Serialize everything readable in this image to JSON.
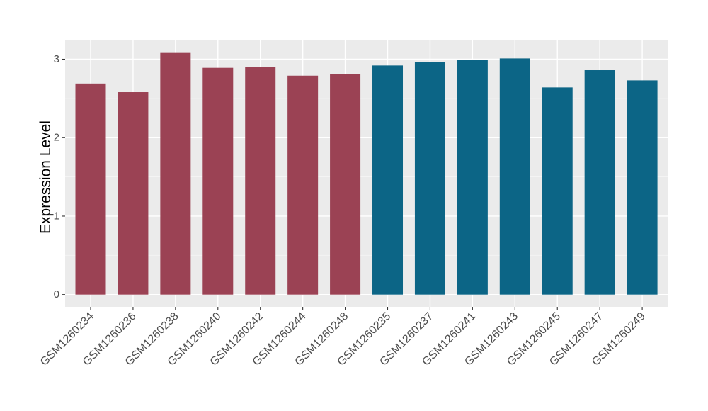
{
  "chart_data": {
    "type": "bar",
    "title": "",
    "xlabel": "",
    "ylabel": "Expression Level",
    "categories": [
      "GSM1260234",
      "GSM1260236",
      "GSM1260238",
      "GSM1260240",
      "GSM1260242",
      "GSM1260244",
      "GSM1260248",
      "GSM1260235",
      "GSM1260237",
      "GSM1260241",
      "GSM1260243",
      "GSM1260245",
      "GSM1260247",
      "GSM1260249"
    ],
    "values": [
      2.69,
      2.58,
      3.08,
      2.89,
      2.9,
      2.79,
      2.81,
      2.92,
      2.96,
      2.99,
      3.01,
      2.64,
      2.86,
      2.73
    ],
    "bar_colors": [
      "#9B4254",
      "#9B4254",
      "#9B4254",
      "#9B4254",
      "#9B4254",
      "#9B4254",
      "#9B4254",
      "#0C6586",
      "#0C6586",
      "#0C6586",
      "#0C6586",
      "#0C6586",
      "#0C6586",
      "#0C6586"
    ],
    "yticks": [
      0,
      1,
      2,
      3
    ],
    "ytick_labels": [
      "0",
      "1",
      "2",
      "3"
    ],
    "yminor": [
      0.5,
      1.5,
      2.5
    ],
    "ylim": [
      0,
      3.25
    ],
    "grid": "on",
    "legend": "none",
    "x_label_angle_deg": 45,
    "colors": {
      "panel_background": "#EBEBEB",
      "major_gridline": "#FFFFFF",
      "minor_gridline": "#F5F5F5",
      "axis_text": "#4D4D4D",
      "tick_mark": "#333333",
      "group_left": "#9B4254",
      "group_right": "#0C6586"
    }
  }
}
